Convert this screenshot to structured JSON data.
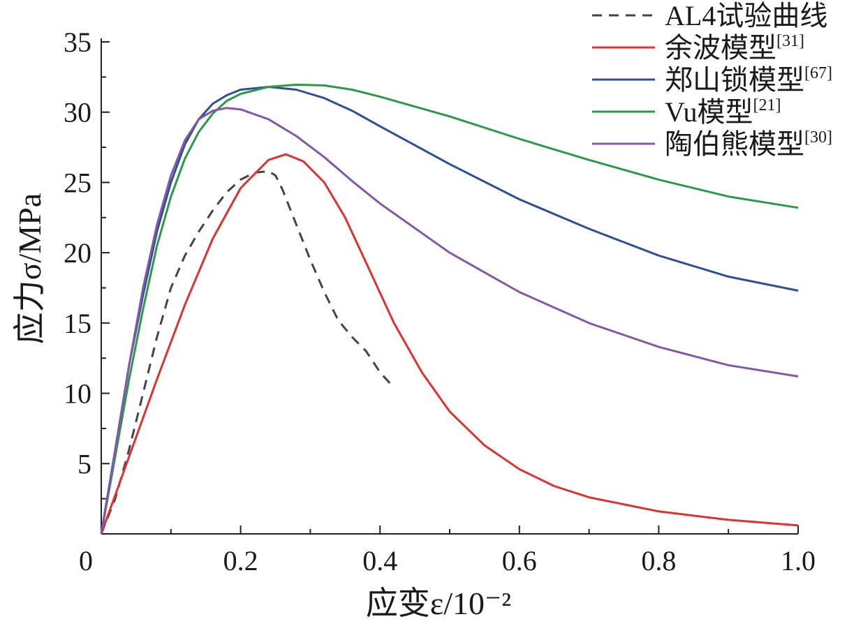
{
  "chart_data": {
    "type": "line",
    "xlabel": "应变ε/10⁻²",
    "ylabel": "应力σ/MPa",
    "xlim": [
      0,
      1.0
    ],
    "ylim": [
      0,
      35
    ],
    "x_ticks": [
      0,
      0.2,
      0.4,
      0.6,
      0.8,
      1.0
    ],
    "x_tick_labels": [
      "0",
      "0.2",
      "0.4",
      "0.6",
      "0.8",
      "1.0"
    ],
    "y_ticks": [
      5,
      10,
      15,
      20,
      25,
      30,
      35
    ],
    "y_tick_labels": [
      "5",
      "10",
      "15",
      "20",
      "25",
      "30",
      "35"
    ],
    "grid": false,
    "legend_position": "top-right",
    "series": [
      {
        "name": "AL4试验曲线",
        "color": "#444444",
        "dash": true,
        "points": [
          [
            0,
            0
          ],
          [
            0.02,
            2.5
          ],
          [
            0.04,
            6
          ],
          [
            0.06,
            10
          ],
          [
            0.08,
            14
          ],
          [
            0.1,
            17.5
          ],
          [
            0.12,
            19.8
          ],
          [
            0.14,
            21.5
          ],
          [
            0.16,
            23
          ],
          [
            0.18,
            24.3
          ],
          [
            0.2,
            25.2
          ],
          [
            0.22,
            25.7
          ],
          [
            0.24,
            25.8
          ],
          [
            0.25,
            25.5
          ],
          [
            0.26,
            24.5
          ],
          [
            0.28,
            22
          ],
          [
            0.3,
            19.5
          ],
          [
            0.32,
            17.2
          ],
          [
            0.34,
            15.2
          ],
          [
            0.36,
            14
          ],
          [
            0.38,
            13
          ],
          [
            0.4,
            11.5
          ],
          [
            0.42,
            10.4
          ]
        ]
      },
      {
        "name": "余波模型",
        "ref": "[31]",
        "color": "#e03030",
        "dash": false,
        "points": [
          [
            0,
            0
          ],
          [
            0.04,
            5.5
          ],
          [
            0.08,
            11
          ],
          [
            0.12,
            16.3
          ],
          [
            0.16,
            21
          ],
          [
            0.2,
            24.6
          ],
          [
            0.24,
            26.6
          ],
          [
            0.265,
            27
          ],
          [
            0.29,
            26.5
          ],
          [
            0.32,
            25
          ],
          [
            0.35,
            22.5
          ],
          [
            0.38,
            19.3
          ],
          [
            0.42,
            15
          ],
          [
            0.46,
            11.5
          ],
          [
            0.5,
            8.7
          ],
          [
            0.55,
            6.3
          ],
          [
            0.6,
            4.6
          ],
          [
            0.65,
            3.4
          ],
          [
            0.7,
            2.6
          ],
          [
            0.8,
            1.6
          ],
          [
            0.9,
            1.0
          ],
          [
            1.0,
            0.6
          ]
        ]
      },
      {
        "name": "郑山锁模型",
        "ref": "[67]",
        "color": "#2c4f96",
        "dash": false,
        "points": [
          [
            0,
            0
          ],
          [
            0.02,
            6
          ],
          [
            0.04,
            12
          ],
          [
            0.06,
            17
          ],
          [
            0.08,
            21.5
          ],
          [
            0.1,
            25
          ],
          [
            0.12,
            27.7
          ],
          [
            0.14,
            29.5
          ],
          [
            0.16,
            30.6
          ],
          [
            0.18,
            31.2
          ],
          [
            0.2,
            31.6
          ],
          [
            0.24,
            31.8
          ],
          [
            0.28,
            31.6
          ],
          [
            0.32,
            31
          ],
          [
            0.36,
            30.1
          ],
          [
            0.4,
            29
          ],
          [
            0.5,
            26.3
          ],
          [
            0.6,
            23.8
          ],
          [
            0.7,
            21.7
          ],
          [
            0.8,
            19.8
          ],
          [
            0.9,
            18.3
          ],
          [
            1.0,
            17.3
          ]
        ]
      },
      {
        "name": "Vu模型",
        "ref": "[21]",
        "color": "#2b9a48",
        "dash": false,
        "points": [
          [
            0,
            0
          ],
          [
            0.02,
            5.5
          ],
          [
            0.04,
            11
          ],
          [
            0.06,
            16
          ],
          [
            0.08,
            20.5
          ],
          [
            0.1,
            24
          ],
          [
            0.12,
            26.7
          ],
          [
            0.14,
            28.6
          ],
          [
            0.16,
            29.9
          ],
          [
            0.18,
            30.8
          ],
          [
            0.2,
            31.3
          ],
          [
            0.24,
            31.8
          ],
          [
            0.28,
            31.95
          ],
          [
            0.32,
            31.9
          ],
          [
            0.36,
            31.6
          ],
          [
            0.4,
            31.1
          ],
          [
            0.5,
            29.7
          ],
          [
            0.6,
            28.1
          ],
          [
            0.7,
            26.6
          ],
          [
            0.8,
            25.2
          ],
          [
            0.9,
            24
          ],
          [
            1.0,
            23.2
          ]
        ]
      },
      {
        "name": "陶伯熊模型",
        "ref": "[30]",
        "color": "#8259a5",
        "dash": false,
        "points": [
          [
            0,
            0
          ],
          [
            0.02,
            6
          ],
          [
            0.04,
            12
          ],
          [
            0.06,
            17.5
          ],
          [
            0.08,
            22
          ],
          [
            0.1,
            25.5
          ],
          [
            0.12,
            28
          ],
          [
            0.14,
            29.5
          ],
          [
            0.16,
            30.1
          ],
          [
            0.18,
            30.3
          ],
          [
            0.2,
            30.2
          ],
          [
            0.24,
            29.5
          ],
          [
            0.28,
            28.3
          ],
          [
            0.32,
            26.8
          ],
          [
            0.36,
            25.1
          ],
          [
            0.4,
            23.5
          ],
          [
            0.5,
            20
          ],
          [
            0.6,
            17.2
          ],
          [
            0.7,
            15
          ],
          [
            0.8,
            13.3
          ],
          [
            0.9,
            12
          ],
          [
            1.0,
            11.2
          ]
        ]
      }
    ]
  }
}
